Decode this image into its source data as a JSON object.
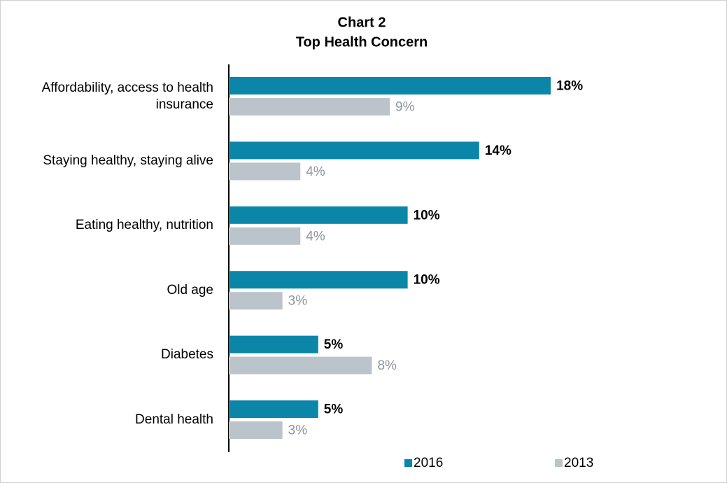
{
  "chart_data": {
    "type": "bar",
    "orientation": "horizontal",
    "title": [
      "Chart 2",
      "Top Health Concern"
    ],
    "categories": [
      "Affordability, access to health insurance",
      "Staying healthy, staying alive",
      "Eating healthy, nutrition",
      "Old age",
      "Diabetes",
      "Dental health"
    ],
    "series": [
      {
        "name": "2016",
        "color": "#0b86a8",
        "values": [
          18,
          14,
          10,
          10,
          5,
          5
        ],
        "value_labels": [
          "18%",
          "14%",
          "10%",
          "10%",
          "5%",
          "5%"
        ]
      },
      {
        "name": "2013",
        "color": "#bcc4cb",
        "values": [
          9,
          4,
          4,
          3,
          8,
          3
        ],
        "value_labels": [
          "9%",
          "4%",
          "4%",
          "3%",
          "8%",
          "3%"
        ]
      }
    ]
  }
}
